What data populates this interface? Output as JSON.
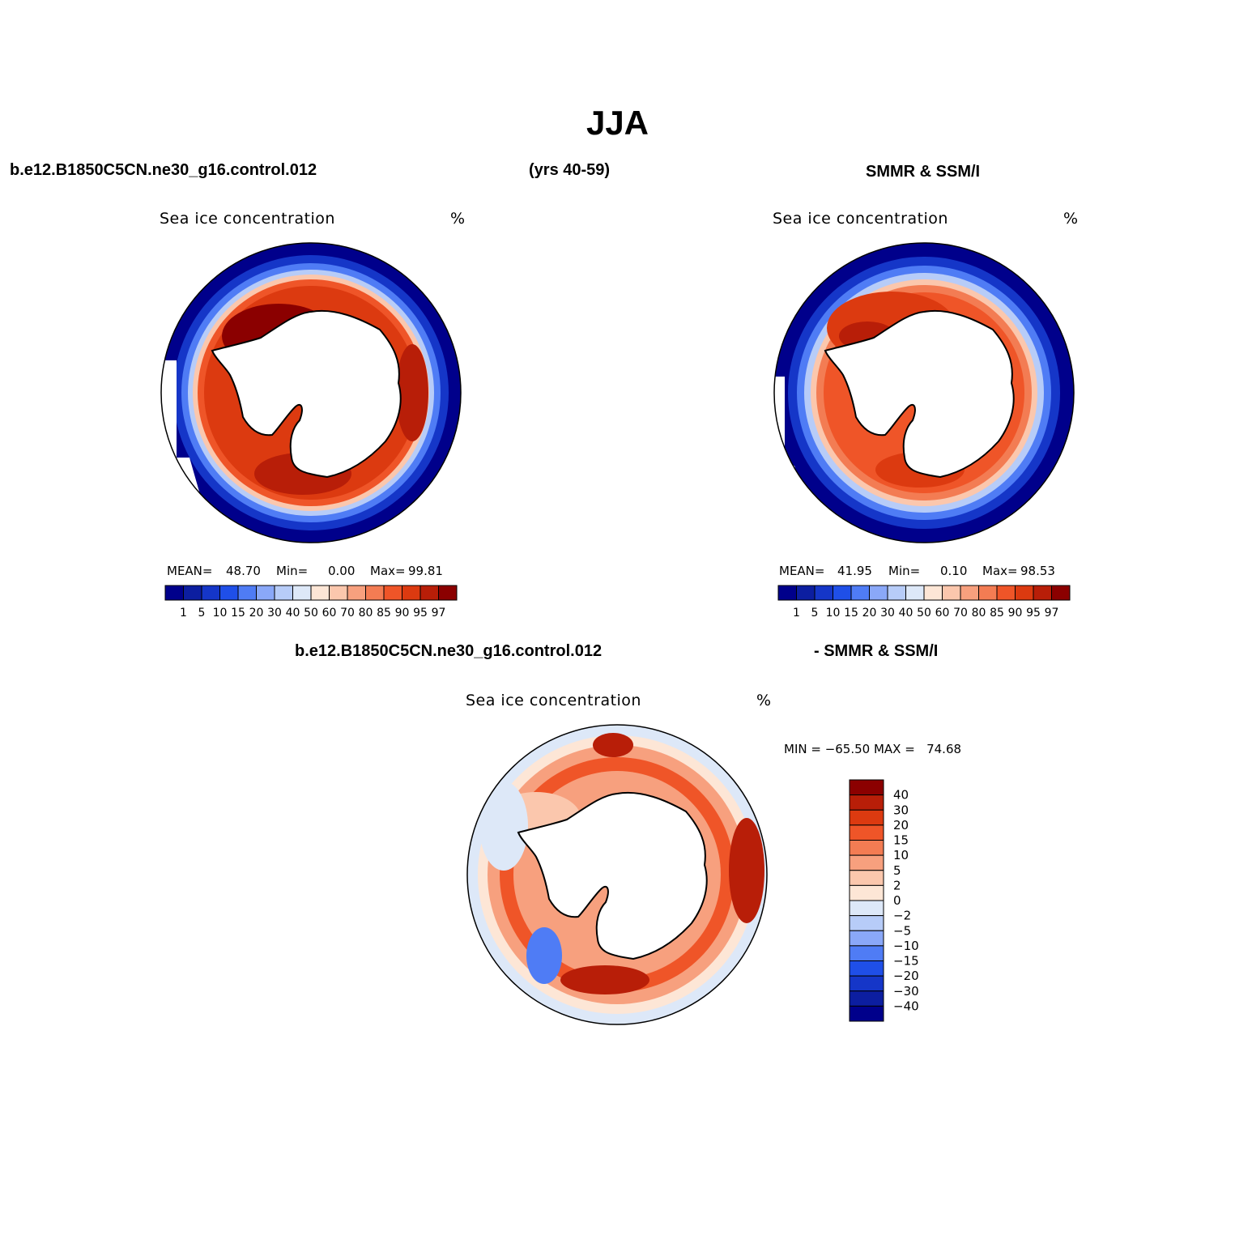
{
  "figure": {
    "title": "JJA",
    "left_header": "b.e12.B1850C5CN.ne30_g16.control.012",
    "center_header": "(yrs 40-59)",
    "right_header": "SMMR & SSM/I",
    "diff_left_header": "b.e12.B1850C5CN.ne30_g16.control.012",
    "diff_right_header": "- SMMR & SSM/I"
  },
  "panels": {
    "model": {
      "variable": "Sea ice concentration",
      "units": "%",
      "mean_label": "MEAN=",
      "mean": "48.70",
      "min_label": "Min=",
      "min": "0.00",
      "max_label": "Max=",
      "max": "99.81"
    },
    "obs": {
      "variable": "Sea ice concentration",
      "units": "%",
      "mean_label": "MEAN=",
      "mean": "41.95",
      "min_label": "Min=",
      "min": "0.10",
      "max_label": "Max=",
      "max": "98.53"
    },
    "diff": {
      "variable": "Sea ice concentration",
      "units": "%",
      "minmax": "MIN = −65.50 MAX =   74.68"
    }
  },
  "colorbars": {
    "concentration": {
      "labels": [
        "1",
        "5",
        "10",
        "15",
        "20",
        "30",
        "40",
        "50",
        "60",
        "70",
        "80",
        "85",
        "90",
        "95",
        "97"
      ],
      "colors": [
        "#00008b",
        "#0c1ea0",
        "#1536c8",
        "#1f4fe8",
        "#4f7cf5",
        "#8aa8f8",
        "#b7ccf8",
        "#dde8f8",
        "#fde6d6",
        "#fbc7ad",
        "#f7a07e",
        "#f37c53",
        "#ef5528",
        "#dc3a10",
        "#b81e08",
        "#8b0000"
      ]
    },
    "difference": {
      "labels": [
        "40",
        "30",
        "20",
        "15",
        "10",
        "5",
        "2",
        "0",
        "−2",
        "−5",
        "−10",
        "−15",
        "−20",
        "−30",
        "−40"
      ],
      "colors": [
        "#8b0000",
        "#b81e08",
        "#dc3a10",
        "#ef5528",
        "#f37c53",
        "#f7a07e",
        "#fbc7ad",
        "#fde6d6",
        "#dde8f8",
        "#b7ccf8",
        "#8aa8f8",
        "#4f7cf5",
        "#1f4fe8",
        "#1536c8",
        "#0c1ea0",
        "#00008b"
      ]
    }
  }
}
